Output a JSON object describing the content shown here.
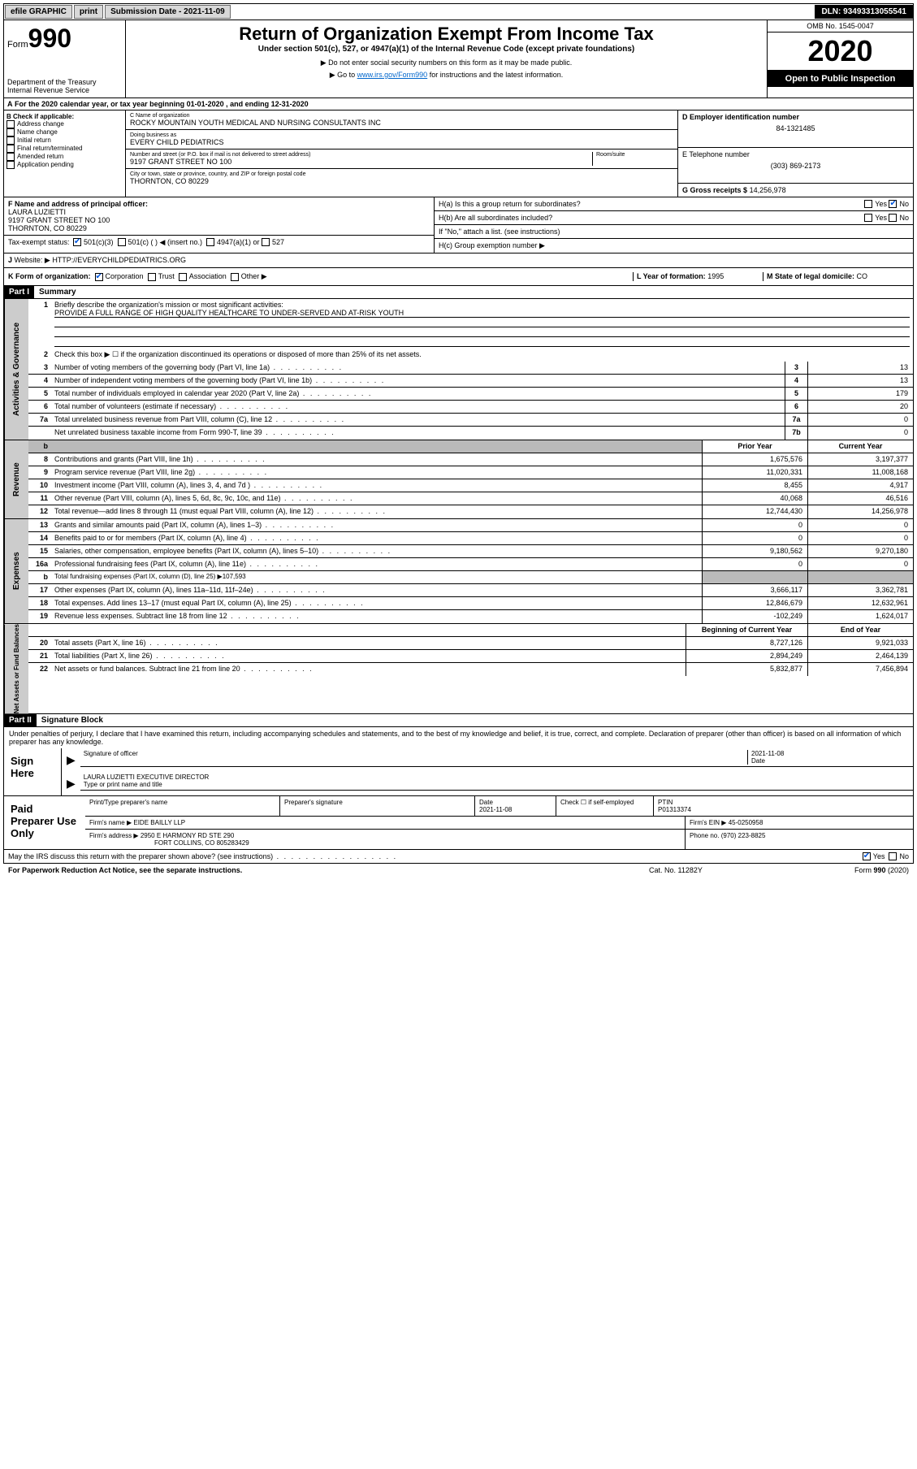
{
  "topbar": {
    "efile": "efile GRAPHIC",
    "print": "print",
    "subdate_label": "Submission Date - 2021-11-09",
    "dln": "DLN: 93493313055541"
  },
  "header": {
    "form_label": "Form",
    "form_num": "990",
    "dept": "Department of the Treasury\nInternal Revenue Service",
    "title": "Return of Organization Exempt From Income Tax",
    "sub1": "Under section 501(c), 527, or 4947(a)(1) of the Internal Revenue Code (except private foundations)",
    "sub2": "▶ Do not enter social security numbers on this form as it may be made public.",
    "sub3_pre": "▶ Go to ",
    "sub3_link": "www.irs.gov/Form990",
    "sub3_post": " for instructions and the latest information.",
    "omb": "OMB No. 1545-0047",
    "year": "2020",
    "public": "Open to Public Inspection"
  },
  "line_a": "For the 2020 calendar year, or tax year beginning 01-01-2020   , and ending 12-31-2020",
  "box_b": {
    "label": "B Check if applicable:",
    "items": [
      "Address change",
      "Name change",
      "Initial return",
      "Final return/terminated",
      "Amended return",
      "Application pending"
    ]
  },
  "box_c": {
    "name_label": "C Name of organization",
    "name": "ROCKY MOUNTAIN YOUTH MEDICAL AND NURSING CONSULTANTS INC",
    "dba_label": "Doing business as",
    "dba": "EVERY CHILD PEDIATRICS",
    "addr_label": "Number and street (or P.O. box if mail is not delivered to street address)",
    "addr": "9197 GRANT STREET NO 100",
    "room_label": "Room/suite",
    "city_label": "City or town, state or province, country, and ZIP or foreign postal code",
    "city": "THORNTON, CO  80229"
  },
  "box_d": {
    "label": "D Employer identification number",
    "val": "84-1321485"
  },
  "box_e": {
    "label": "E Telephone number",
    "val": "(303) 869-2173"
  },
  "box_g": {
    "label": "G Gross receipts $",
    "val": "14,256,978"
  },
  "box_f": {
    "label": "F  Name and address of principal officer:",
    "name": "LAURA LUZIETTI",
    "addr1": "9197 GRANT STREET NO 100",
    "addr2": "THORNTON, CO  80229"
  },
  "box_h": {
    "ha": "H(a)  Is this a group return for subordinates?",
    "hb": "H(b)  Are all subordinates included?",
    "hb_note": "If \"No,\" attach a list. (see instructions)",
    "hc": "H(c)  Group exemption number ▶",
    "yes": "Yes",
    "no": "No"
  },
  "box_i": {
    "label": "Tax-exempt status:",
    "opts": [
      "501(c)(3)",
      "501(c) (  ) ◀ (insert no.)",
      "4947(a)(1) or",
      "527"
    ]
  },
  "box_j": {
    "label": "Website: ▶",
    "val": "HTTP://EVERYCHILDPEDIATRICS.ORG"
  },
  "box_k": {
    "label": "K Form of organization:",
    "opts": [
      "Corporation",
      "Trust",
      "Association",
      "Other ▶"
    ]
  },
  "box_l": {
    "label": "L Year of formation:",
    "val": "1995"
  },
  "box_m": {
    "label": "M State of legal domicile:",
    "val": "CO"
  },
  "part1": {
    "hdr": "Part I",
    "title": "Summary",
    "line1_label": "Briefly describe the organization's mission or most significant activities:",
    "line1_val": "PROVIDE A FULL RANGE OF HIGH QUALITY HEALTHCARE TO UNDER-SERVED AND AT-RISK YOUTH",
    "line2": "Check this box ▶ ☐  if the organization discontinued its operations or disposed of more than 25% of its net assets.",
    "gov": [
      {
        "n": "3",
        "t": "Number of voting members of the governing body (Part VI, line 1a)",
        "b": "3",
        "v": "13"
      },
      {
        "n": "4",
        "t": "Number of independent voting members of the governing body (Part VI, line 1b)",
        "b": "4",
        "v": "13"
      },
      {
        "n": "5",
        "t": "Total number of individuals employed in calendar year 2020 (Part V, line 2a)",
        "b": "5",
        "v": "179"
      },
      {
        "n": "6",
        "t": "Total number of volunteers (estimate if necessary)",
        "b": "6",
        "v": "20"
      },
      {
        "n": "7a",
        "t": "Total unrelated business revenue from Part VIII, column (C), line 12",
        "b": "7a",
        "v": "0"
      },
      {
        "n": "",
        "t": "Net unrelated business taxable income from Form 990-T, line 39",
        "b": "7b",
        "v": "0"
      }
    ],
    "col_prior": "Prior Year",
    "col_curr": "Current Year",
    "rev": [
      {
        "n": "8",
        "t": "Contributions and grants (Part VIII, line 1h)",
        "p": "1,675,576",
        "c": "3,197,377"
      },
      {
        "n": "9",
        "t": "Program service revenue (Part VIII, line 2g)",
        "p": "11,020,331",
        "c": "11,008,168"
      },
      {
        "n": "10",
        "t": "Investment income (Part VIII, column (A), lines 3, 4, and 7d )",
        "p": "8,455",
        "c": "4,917"
      },
      {
        "n": "11",
        "t": "Other revenue (Part VIII, column (A), lines 5, 6d, 8c, 9c, 10c, and 11e)",
        "p": "40,068",
        "c": "46,516"
      },
      {
        "n": "12",
        "t": "Total revenue—add lines 8 through 11 (must equal Part VIII, column (A), line 12)",
        "p": "12,744,430",
        "c": "14,256,978"
      }
    ],
    "exp": [
      {
        "n": "13",
        "t": "Grants and similar amounts paid (Part IX, column (A), lines 1–3)",
        "p": "0",
        "c": "0"
      },
      {
        "n": "14",
        "t": "Benefits paid to or for members (Part IX, column (A), line 4)",
        "p": "0",
        "c": "0"
      },
      {
        "n": "15",
        "t": "Salaries, other compensation, employee benefits (Part IX, column (A), lines 5–10)",
        "p": "9,180,562",
        "c": "9,270,180"
      },
      {
        "n": "16a",
        "t": "Professional fundraising fees (Part IX, column (A), line 11e)",
        "p": "0",
        "c": "0"
      },
      {
        "n": "b",
        "t": "Total fundraising expenses (Part IX, column (D), line 25) ▶107,593",
        "shade": true
      },
      {
        "n": "17",
        "t": "Other expenses (Part IX, column (A), lines 11a–11d, 11f–24e)",
        "p": "3,666,117",
        "c": "3,362,781"
      },
      {
        "n": "18",
        "t": "Total expenses. Add lines 13–17 (must equal Part IX, column (A), line 25)",
        "p": "12,846,679",
        "c": "12,632,961"
      },
      {
        "n": "19",
        "t": "Revenue less expenses. Subtract line 18 from line 12",
        "p": "-102,249",
        "c": "1,624,017"
      }
    ],
    "col_beg": "Beginning of Current Year",
    "col_end": "End of Year",
    "net": [
      {
        "n": "20",
        "t": "Total assets (Part X, line 16)",
        "p": "8,727,126",
        "c": "9,921,033"
      },
      {
        "n": "21",
        "t": "Total liabilities (Part X, line 26)",
        "p": "2,894,249",
        "c": "2,464,139"
      },
      {
        "n": "22",
        "t": "Net assets or fund balances. Subtract line 21 from line 20",
        "p": "5,832,877",
        "c": "7,456,894"
      }
    ],
    "vtab_gov": "Activities & Governance",
    "vtab_rev": "Revenue",
    "vtab_exp": "Expenses",
    "vtab_net": "Net Assets or Fund Balances"
  },
  "part2": {
    "hdr": "Part II",
    "title": "Signature Block",
    "penalty": "Under penalties of perjury, I declare that I have examined this return, including accompanying schedules and statements, and to the best of my knowledge and belief, it is true, correct, and complete. Declaration of preparer (other than officer) is based on all information of which preparer has any knowledge.",
    "sign_here": "Sign Here",
    "sig_officer": "Signature of officer",
    "sig_date": "2021-11-08",
    "date_label": "Date",
    "officer_name": "LAURA LUZIETTI  EXECUTIVE DIRECTOR",
    "type_name": "Type or print name and title",
    "paid": "Paid Preparer Use Only",
    "prep_name_label": "Print/Type preparer's name",
    "prep_sig_label": "Preparer's signature",
    "prep_date_label": "Date",
    "prep_date": "2021-11-08",
    "prep_check": "Check ☐ if self-employed",
    "ptin_label": "PTIN",
    "ptin": "P01313374",
    "firm_name_label": "Firm's name    ▶",
    "firm_name": "EIDE BAILLY LLP",
    "firm_ein_label": "Firm's EIN ▶",
    "firm_ein": "45-0250958",
    "firm_addr_label": "Firm's address ▶",
    "firm_addr1": "2950 E HARMONY RD STE 290",
    "firm_addr2": "FORT COLLINS, CO  805283429",
    "phone_label": "Phone no.",
    "phone": "(970) 223-8825",
    "discuss": "May the IRS discuss this return with the preparer shown above? (see instructions)"
  },
  "footer": {
    "left": "For Paperwork Reduction Act Notice, see the separate instructions.",
    "mid": "Cat. No. 11282Y",
    "right": "Form 990 (2020)"
  }
}
